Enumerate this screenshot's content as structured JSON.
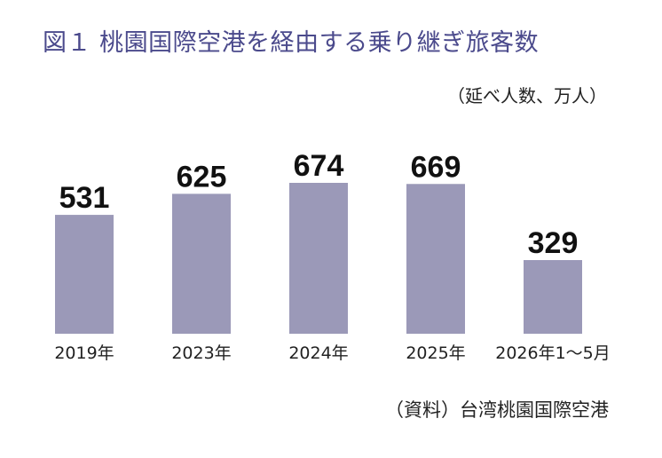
{
  "chart_data": {
    "type": "bar",
    "title": "図１ 桃園国際空港を経由する乗り継ぎ旅客数",
    "unit": "（延べ人数、万人）",
    "source": "（資料）台湾桃園国際空港",
    "categories": [
      "2019年",
      "2023年",
      "2024年",
      "2025年",
      "2026年1～5月"
    ],
    "values": [
      531,
      625,
      674,
      669,
      329
    ],
    "ylim": [
      0,
      674
    ],
    "grid": false,
    "legend": "none",
    "colors": {
      "bar": "#9b99b8",
      "title": "#4b4a8c",
      "text": "#222222"
    }
  }
}
